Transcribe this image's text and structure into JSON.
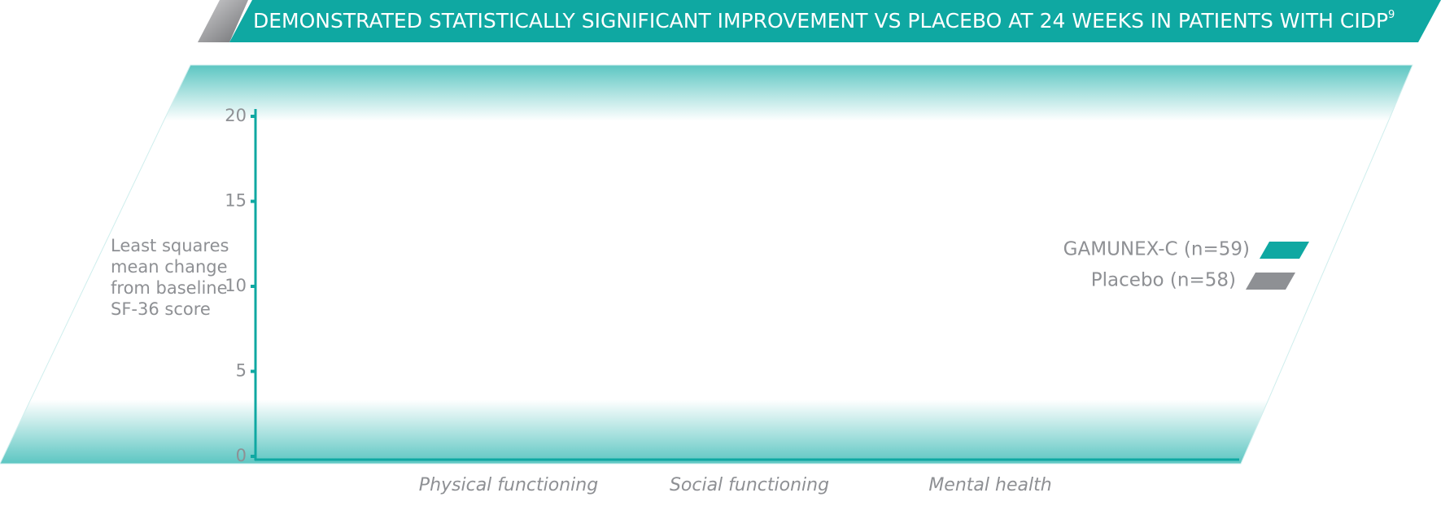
{
  "chart_data": {
    "type": "bar",
    "title": "DEMONSTRATED STATISTICALLY SIGNIFICANT IMPROVEMENT VS PLACEBO AT 24 WEEKS IN PATIENTS WITH CIDP",
    "title_footnote": "9",
    "y_label": [
      "Least squares",
      "mean change",
      "from baseline",
      "SF-36 score"
    ],
    "categories": [
      "Physical functioning",
      "Social functioning",
      "Mental health"
    ],
    "series": [
      {
        "name": "GAMUNEX-C (n=59)",
        "color": "#0fa8a2",
        "values": [
          null,
          null,
          null
        ]
      },
      {
        "name": "Placebo (n=58)",
        "color": "#8e9094",
        "values": [
          null,
          null,
          null
        ]
      }
    ],
    "ylim": [
      0,
      20
    ],
    "yticks": [
      0,
      5,
      10,
      15,
      20
    ],
    "legend": "right"
  }
}
